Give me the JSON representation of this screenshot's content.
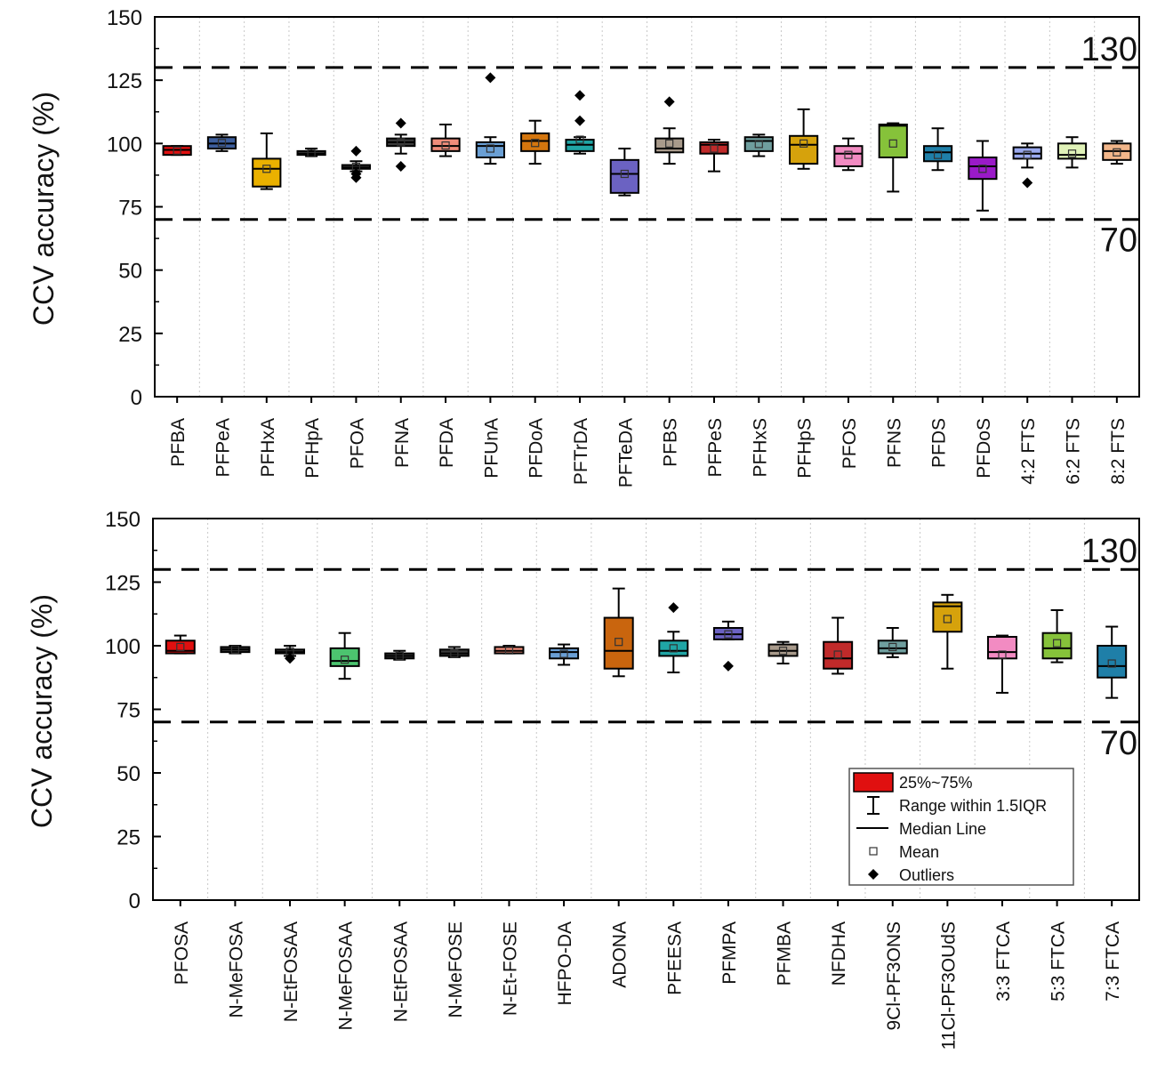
{
  "chart_data": [
    {
      "type": "box",
      "ylabel": "CCV accuracy (%)",
      "ylim": [
        0,
        150
      ],
      "yticks": [
        "0",
        "25",
        "50",
        "75",
        "100",
        "125",
        "150"
      ],
      "reference_lines": [
        {
          "value": 130,
          "label": "130"
        },
        {
          "value": 70,
          "label": "70"
        }
      ],
      "grid": "vertical dotted lines between categories",
      "boxes": [
        {
          "name": "PFBA",
          "color": "#e01010",
          "whisker_low": 95.5,
          "q1": 95.5,
          "median": 97.5,
          "q3": 99,
          "whisker_high": 99,
          "mean": 97.2,
          "outliers": []
        },
        {
          "name": "PFPeA",
          "color": "#3d5e9c",
          "whisker_low": 97,
          "q1": 98,
          "median": 100,
          "q3": 102.5,
          "whisker_high": 103.5,
          "mean": 100.2,
          "outliers": []
        },
        {
          "name": "PFHxA",
          "color": "#eab100",
          "whisker_low": 82,
          "q1": 83,
          "median": 90,
          "q3": 94,
          "whisker_high": 104,
          "mean": 90,
          "outliers": []
        },
        {
          "name": "PFHpA",
          "color": "#3a3a3a",
          "whisker_low": 95,
          "q1": 95.5,
          "median": 96,
          "q3": 97,
          "whisker_high": 98,
          "mean": 96.2,
          "outliers": []
        },
        {
          "name": "PFOA",
          "color": "#3a3a3a",
          "whisker_low": 89,
          "q1": 90,
          "median": 90.5,
          "q3": 91.5,
          "whisker_high": 93,
          "mean": 90.8,
          "outliers": [
            97,
            88,
            86.5
          ]
        },
        {
          "name": "PFNA",
          "color": "#3a3a3a",
          "whisker_low": 96,
          "q1": 99,
          "median": 100.5,
          "q3": 102,
          "whisker_high": 103.5,
          "mean": 100.5,
          "outliers": [
            108,
            91
          ]
        },
        {
          "name": "PFDA",
          "color": "#f08c7a",
          "whisker_low": 95,
          "q1": 97,
          "median": 99,
          "q3": 102,
          "whisker_high": 107.5,
          "mean": 99.2,
          "outliers": []
        },
        {
          "name": "PFUnA",
          "color": "#6a9fd4",
          "whisker_low": 92,
          "q1": 94.5,
          "median": 99,
          "q3": 100.5,
          "whisker_high": 102.5,
          "mean": 98,
          "outliers": [
            126
          ]
        },
        {
          "name": "PFDoA",
          "color": "#d4760e",
          "whisker_low": 92,
          "q1": 97,
          "median": 101,
          "q3": 104,
          "whisker_high": 109,
          "mean": 100.2,
          "outliers": []
        },
        {
          "name": "PFTrDA",
          "color": "#20a5a5",
          "whisker_low": 96,
          "q1": 97,
          "median": 99.5,
          "q3": 101.5,
          "whisker_high": 102.5,
          "mean": 101.5,
          "outliers": [
            119,
            109
          ]
        },
        {
          "name": "PFTeDA",
          "color": "#6b62c2",
          "whisker_low": 79.5,
          "q1": 80.5,
          "median": 88,
          "q3": 93.5,
          "whisker_high": 98,
          "mean": 88,
          "outliers": []
        },
        {
          "name": "PFBS",
          "color": "#a89a8b",
          "whisker_low": 92,
          "q1": 96.5,
          "median": 98,
          "q3": 102,
          "whisker_high": 106,
          "mean": 100,
          "outliers": [
            116.5
          ]
        },
        {
          "name": "PFPeS",
          "color": "#c02a2a",
          "whisker_low": 89,
          "q1": 96,
          "median": 99.5,
          "q3": 100.5,
          "whisker_high": 101.5,
          "mean": 98,
          "outliers": []
        },
        {
          "name": "PFHxS",
          "color": "#6f9e9e",
          "whisker_low": 95,
          "q1": 97,
          "median": 101,
          "q3": 102.5,
          "whisker_high": 103.5,
          "mean": 99.8,
          "outliers": []
        },
        {
          "name": "PFHpS",
          "color": "#d6a20c",
          "whisker_low": 90,
          "q1": 92,
          "median": 99.5,
          "q3": 103,
          "whisker_high": 113.5,
          "mean": 100,
          "outliers": []
        },
        {
          "name": "PFOS",
          "color": "#f28bc2",
          "whisker_low": 89.5,
          "q1": 91,
          "median": 96,
          "q3": 99,
          "whisker_high": 102,
          "mean": 95.5,
          "outliers": []
        },
        {
          "name": "PFNS",
          "color": "#86c23a",
          "whisker_low": 81,
          "q1": 94.5,
          "median": 107,
          "q3": 107.5,
          "whisker_high": 108,
          "mean": 100,
          "outliers": []
        },
        {
          "name": "PFDS",
          "color": "#1f7fa8",
          "whisker_low": 89.5,
          "q1": 93,
          "median": 96.5,
          "q3": 99,
          "whisker_high": 106,
          "mean": 95.5,
          "outliers": []
        },
        {
          "name": "PFDoS",
          "color": "#9a1ac8",
          "whisker_low": 73.5,
          "q1": 86,
          "median": 91,
          "q3": 94.5,
          "whisker_high": 101,
          "mean": 90,
          "outliers": []
        },
        {
          "name": "4:2 FTS",
          "color": "#9aa9ee",
          "whisker_low": 90.5,
          "q1": 94,
          "median": 96,
          "q3": 98.5,
          "whisker_high": 100,
          "mean": 95.5,
          "outliers": [
            84.5
          ]
        },
        {
          "name": "6:2 FTS",
          "color": "#e0f2b8",
          "whisker_low": 90.5,
          "q1": 94,
          "median": 95.5,
          "q3": 100,
          "whisker_high": 102.5,
          "mean": 96,
          "outliers": []
        },
        {
          "name": "8:2 FTS",
          "color": "#f2b68a",
          "whisker_low": 92,
          "q1": 93.5,
          "median": 97,
          "q3": 100,
          "whisker_high": 101,
          "mean": 96.5,
          "outliers": []
        }
      ]
    },
    {
      "type": "box",
      "ylabel": "CCV accuracy (%)",
      "ylim": [
        0,
        150
      ],
      "yticks": [
        "0",
        "25",
        "50",
        "75",
        "100",
        "125",
        "150"
      ],
      "reference_lines": [
        {
          "value": 130,
          "label": "130"
        },
        {
          "value": 70,
          "label": "70"
        }
      ],
      "grid": "vertical dotted lines between categories",
      "legend": {
        "placement": "bottom-right",
        "entries": [
          {
            "symbol": "box",
            "label": "25%~75%"
          },
          {
            "symbol": "range",
            "label": "Range within 1.5IQR"
          },
          {
            "symbol": "line",
            "label": "Median Line"
          },
          {
            "symbol": "square",
            "label": "Mean"
          },
          {
            "symbol": "diamond",
            "label": "Outliers"
          }
        ]
      },
      "boxes": [
        {
          "name": "PFOSA",
          "color": "#e01010",
          "whisker_low": 97,
          "q1": 97,
          "median": 98,
          "q3": 102,
          "whisker_high": 104,
          "mean": 99.5,
          "outliers": []
        },
        {
          "name": "N-MeFOSA",
          "color": "#3a3a3a",
          "whisker_low": 97,
          "q1": 97.5,
          "median": 98.5,
          "q3": 99.5,
          "whisker_high": 100,
          "mean": 98.5,
          "outliers": []
        },
        {
          "name": "N-EtFOSAA",
          "color": "#3a3a3a",
          "whisker_low": 96,
          "q1": 97,
          "median": 97.5,
          "q3": 98.5,
          "whisker_high": 100,
          "mean": 97.8,
          "outliers": [
            95
          ]
        },
        {
          "name": "N-MeFOSAA",
          "color": "#4cc46f",
          "whisker_low": 87,
          "q1": 92,
          "median": 94,
          "q3": 99,
          "whisker_high": 105,
          "mean": 94.5,
          "outliers": []
        },
        {
          "name": "N-EtFOSAA",
          "color": "#3a3a3a",
          "whisker_low": 94.5,
          "q1": 95,
          "median": 96,
          "q3": 97,
          "whisker_high": 98,
          "mean": 96,
          "outliers": []
        },
        {
          "name": "N-MeFOSE",
          "color": "#3a3a3a",
          "whisker_low": 95.5,
          "q1": 96,
          "median": 97,
          "q3": 98.5,
          "whisker_high": 99.5,
          "mean": 97,
          "outliers": []
        },
        {
          "name": "N-Et-FOSE",
          "color": "#f08c7a",
          "whisker_low": 97,
          "q1": 97,
          "median": 98,
          "q3": 99.5,
          "whisker_high": 100,
          "mean": 98.2,
          "outliers": []
        },
        {
          "name": "HFPO-DA",
          "color": "#6a9fd4",
          "whisker_low": 92.5,
          "q1": 95,
          "median": 97.5,
          "q3": 99,
          "whisker_high": 100.5,
          "mean": 96.8,
          "outliers": []
        },
        {
          "name": "ADONA",
          "color": "#c9650e",
          "whisker_low": 88,
          "q1": 91,
          "median": 98,
          "q3": 111,
          "whisker_high": 122.5,
          "mean": 101.5,
          "outliers": []
        },
        {
          "name": "PFEESA",
          "color": "#20a5a5",
          "whisker_low": 89.5,
          "q1": 96,
          "median": 98,
          "q3": 102,
          "whisker_high": 105.5,
          "mean": 99,
          "outliers": [
            115
          ]
        },
        {
          "name": "PFMPA",
          "color": "#6b62c2",
          "whisker_low": 102.5,
          "q1": 102.5,
          "median": 104.5,
          "q3": 107,
          "whisker_high": 109.5,
          "mean": 104.5,
          "outliers": [
            92
          ]
        },
        {
          "name": "PFMBA",
          "color": "#a89a8b",
          "whisker_low": 93,
          "q1": 96,
          "median": 98,
          "q3": 100.5,
          "whisker_high": 101.5,
          "mean": 98,
          "outliers": []
        },
        {
          "name": "NFDHA",
          "color": "#c02a2a",
          "whisker_low": 89,
          "q1": 91,
          "median": 95,
          "q3": 101.5,
          "whisker_high": 111,
          "mean": 96.5,
          "outliers": []
        },
        {
          "name": "9Cl-PF3ONS",
          "color": "#6f9e9e",
          "whisker_low": 95.5,
          "q1": 97,
          "median": 99,
          "q3": 102,
          "whisker_high": 107,
          "mean": 99.5,
          "outliers": []
        },
        {
          "name": "11Cl-PF3OUdS",
          "color": "#d6a20c",
          "whisker_low": 91,
          "q1": 105.5,
          "median": 115.5,
          "q3": 117,
          "whisker_high": 120,
          "mean": 110.5,
          "outliers": []
        },
        {
          "name": "3:3 FTCA",
          "color": "#f28bc2",
          "whisker_low": 81.5,
          "q1": 95,
          "median": 97.5,
          "q3": 103.5,
          "whisker_high": 104,
          "mean": 96.5,
          "outliers": []
        },
        {
          "name": "5:3 FTCA",
          "color": "#86c23a",
          "whisker_low": 93.5,
          "q1": 95,
          "median": 99,
          "q3": 105,
          "whisker_high": 114,
          "mean": 101,
          "outliers": []
        },
        {
          "name": "7:3 FTCA",
          "color": "#1f7fa8",
          "whisker_low": 79.5,
          "q1": 87.5,
          "median": 92,
          "q3": 100,
          "whisker_high": 107.5,
          "mean": 93,
          "outliers": []
        }
      ]
    }
  ]
}
